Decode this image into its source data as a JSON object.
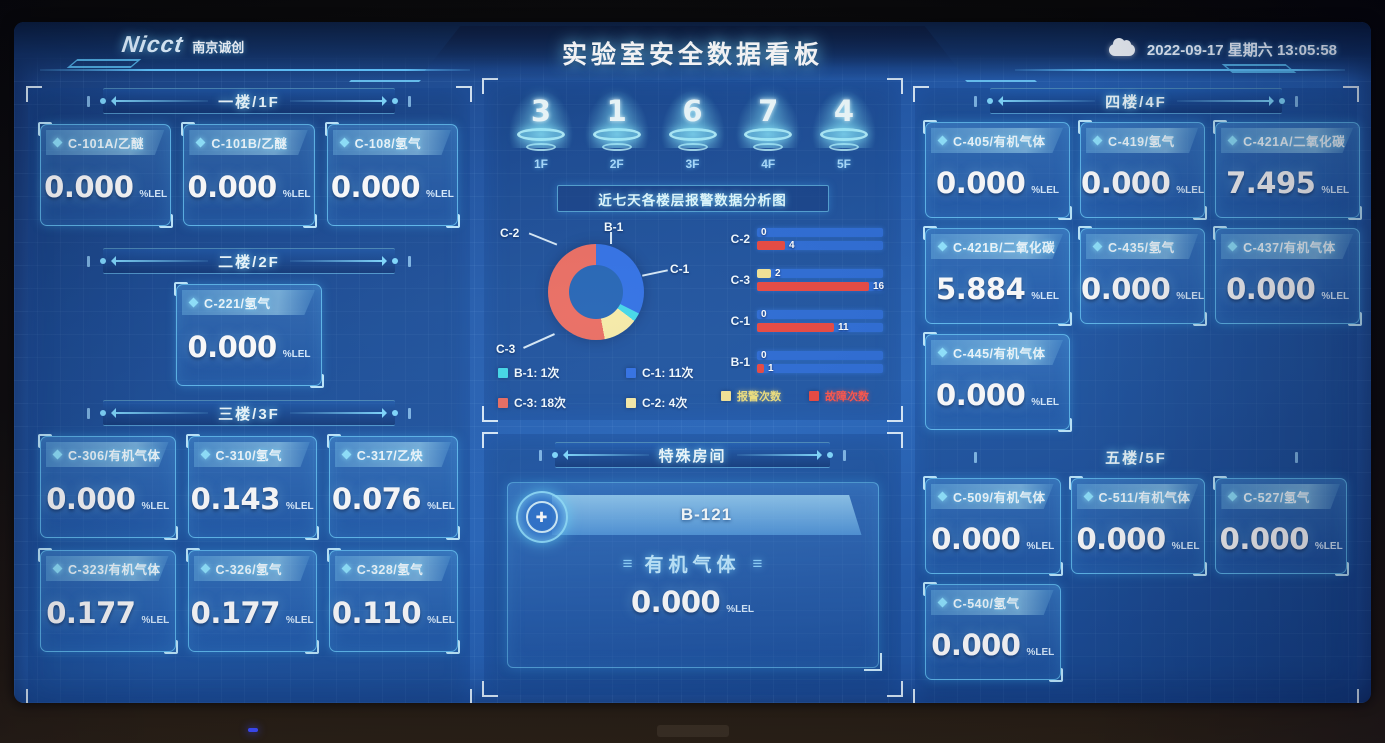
{
  "header": {
    "logo_text": "Nicct",
    "logo_cn": "南京诚创",
    "title": "实验室安全数据看板",
    "datetime": "2022-09-17 星期六 13:05:58"
  },
  "unit": "%LEL",
  "floors_left": [
    {
      "label": "一楼/1F",
      "cards": [
        {
          "name": "C-101A/乙醚",
          "value": "0.000"
        },
        {
          "name": "C-101B/乙醚",
          "value": "0.000"
        },
        {
          "name": "C-108/氢气",
          "value": "0.000"
        }
      ]
    },
    {
      "label": "二楼/2F",
      "cards": [
        {
          "name": "C-221/氢气",
          "value": "0.000"
        }
      ]
    },
    {
      "label": "三楼/3F",
      "cards": [
        {
          "name": "C-306/有机气体",
          "value": "0.000"
        },
        {
          "name": "C-310/氢气",
          "value": "0.143"
        },
        {
          "name": "C-317/乙炔",
          "value": "0.076"
        },
        {
          "name": "C-323/有机气体",
          "value": "0.177"
        },
        {
          "name": "C-326/氢气",
          "value": "0.177"
        },
        {
          "name": "C-328/氢气",
          "value": "0.110"
        }
      ]
    }
  ],
  "floors_right": [
    {
      "label": "四楼/4F",
      "cards": [
        {
          "name": "C-405/有机气体",
          "value": "0.000"
        },
        {
          "name": "C-419/氢气",
          "value": "0.000"
        },
        {
          "name": "C-421A/二氧化碳",
          "value": "7.495"
        },
        {
          "name": "C-421B/二氧化碳",
          "value": "5.884"
        },
        {
          "name": "C-435/氢气",
          "value": "0.000"
        },
        {
          "name": "C-437/有机气体",
          "value": "0.000"
        },
        {
          "name": "C-445/有机气体",
          "value": "0.000"
        }
      ]
    },
    {
      "label": "五楼/5F",
      "cards": [
        {
          "name": "C-509/有机气体",
          "value": "0.000"
        },
        {
          "name": "C-511/有机气体",
          "value": "0.000"
        },
        {
          "name": "C-527/氢气",
          "value": "0.000"
        },
        {
          "name": "C-540/氢气",
          "value": "0.000"
        }
      ]
    }
  ],
  "center": {
    "floor_counters": [
      {
        "floor": "1F",
        "count": "3"
      },
      {
        "floor": "2F",
        "count": "1"
      },
      {
        "floor": "3F",
        "count": "6"
      },
      {
        "floor": "4F",
        "count": "7"
      },
      {
        "floor": "5F",
        "count": "4"
      }
    ],
    "special_room": {
      "header": "特殊房间",
      "room": "B-121",
      "gas": "有机气体",
      "deco_mark": "≡",
      "value": "0.000"
    }
  },
  "chart_data": [
    {
      "type": "pie",
      "title": "近七天各楼层报警数据分析图",
      "order": [
        "C-1",
        "B-1",
        "C-2",
        "C-3"
      ],
      "values": {
        "C-1": 11,
        "B-1": 1,
        "C-2": 4,
        "C-3": 18
      },
      "unit": "次",
      "colors": {
        "C-1": "#2f6fe4",
        "B-1": "#41d7e8",
        "C-2": "#f5e9a6",
        "C-3": "#e96b60"
      },
      "legend": [
        {
          "key": "B-1",
          "text": "B-1: 1次",
          "color": "#41d7e8"
        },
        {
          "key": "C-1",
          "text": "C-1: 11次",
          "color": "#2f6fe4"
        },
        {
          "key": "C-3",
          "text": "C-3: 18次",
          "color": "#e96b60"
        },
        {
          "key": "C-2",
          "text": "C-2: 4次",
          "color": "#f5e9a6"
        }
      ]
    },
    {
      "type": "bar",
      "orientation": "horizontal",
      "categories": [
        "C-2",
        "C-3",
        "C-1",
        "B-1"
      ],
      "series": [
        {
          "name": "报警次数",
          "color": "#f3e394",
          "values": [
            0,
            2,
            0,
            0
          ]
        },
        {
          "name": "故障次数",
          "color": "#e8463e",
          "values": [
            4,
            16,
            11,
            1
          ]
        }
      ],
      "xmax": 18,
      "track_color": "#2a6ad4",
      "legend": [
        {
          "text": "报警次数",
          "color": "#f3e394"
        },
        {
          "text": "故障次数",
          "color": "#e8463e"
        }
      ]
    }
  ]
}
